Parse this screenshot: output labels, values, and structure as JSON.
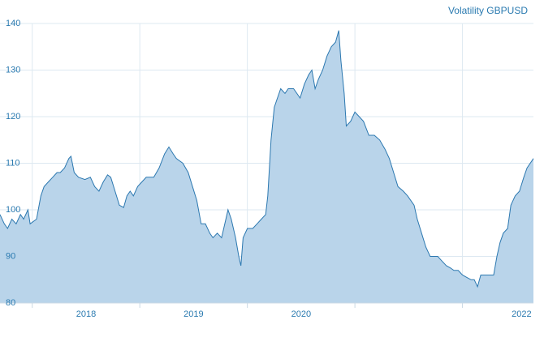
{
  "chart_data": {
    "type": "area",
    "title": "Volatility GBPUSD",
    "series": [
      {
        "name": "GBPUSD",
        "color": "#2c78b0",
        "fill": "#b9d4ea",
        "x": [
          2017.7,
          2017.74,
          2017.77,
          2017.81,
          2017.85,
          2017.89,
          2017.92,
          2017.96,
          2017.98,
          2018.04,
          2018.08,
          2018.11,
          2018.15,
          2018.19,
          2018.23,
          2018.26,
          2018.3,
          2018.34,
          2018.36,
          2018.39,
          2018.43,
          2018.49,
          2018.54,
          2018.58,
          2018.62,
          2018.66,
          2018.7,
          2018.73,
          2018.77,
          2018.81,
          2018.85,
          2018.88,
          2018.91,
          2018.94,
          2018.98,
          2019.02,
          2019.06,
          2019.13,
          2019.18,
          2019.23,
          2019.27,
          2019.31,
          2019.34,
          2019.4,
          2019.45,
          2019.49,
          2019.53,
          2019.57,
          2019.61,
          2019.65,
          2019.68,
          2019.72,
          2019.76,
          2019.8,
          2019.82,
          2019.85,
          2019.89,
          2019.92,
          2019.94,
          2019.96,
          2020.0,
          2020.05,
          2020.09,
          2020.13,
          2020.17,
          2020.19,
          2020.22,
          2020.25,
          2020.28,
          2020.31,
          2020.35,
          2020.38,
          2020.43,
          2020.49,
          2020.53,
          2020.57,
          2020.6,
          2020.63,
          2020.66,
          2020.7,
          2020.74,
          2020.78,
          2020.82,
          2020.85,
          2020.87,
          2020.9,
          2020.92,
          2020.96,
          2021.0,
          2021.04,
          2021.08,
          2021.13,
          2021.18,
          2021.23,
          2021.28,
          2021.32,
          2021.36,
          2021.4,
          2021.45,
          2021.49,
          2021.55,
          2021.58,
          2021.62,
          2021.66,
          2021.7,
          2021.77,
          2021.81,
          2021.85,
          2021.89,
          2021.92,
          2021.96,
          2022.0,
          2022.04,
          2022.08,
          2022.11,
          2022.14,
          2022.17,
          2022.23,
          2022.29,
          2022.32,
          2022.35,
          2022.38,
          2022.42,
          2022.45,
          2022.49,
          2022.53,
          2022.57,
          2022.6,
          2022.66
        ],
        "values": [
          99,
          97,
          96,
          98,
          97,
          99,
          98,
          100,
          97,
          98,
          103,
          105,
          106,
          107,
          108,
          108,
          109,
          111,
          111.5,
          108,
          107,
          106.5,
          107,
          105,
          104,
          106,
          107.5,
          107,
          104,
          101,
          100.5,
          103,
          104,
          103,
          105,
          106,
          107,
          107,
          109,
          112,
          113.5,
          112,
          111,
          110,
          108,
          105,
          102,
          97,
          97,
          95,
          94,
          95,
          94,
          98,
          100,
          98,
          94,
          90,
          88,
          94,
          96,
          96,
          97,
          98,
          99,
          103,
          115,
          122,
          124,
          126,
          125,
          126,
          126,
          124,
          127,
          129,
          130,
          126,
          128,
          130,
          133,
          135,
          136,
          138.5,
          132,
          125,
          118,
          119,
          121,
          120,
          119,
          116,
          116,
          115,
          113,
          111,
          108,
          105,
          104,
          103,
          101,
          98,
          95,
          92,
          90,
          90,
          89,
          88,
          87.5,
          87,
          87,
          86,
          85.5,
          85,
          85,
          83.5,
          86,
          86,
          86,
          90,
          93,
          95,
          96,
          101,
          103,
          104,
          107,
          109,
          111
        ]
      }
    ],
    "xlim": [
      2017.7,
      2022.66
    ],
    "xgrid": [
      2018,
      2019,
      2020,
      2021,
      2022
    ],
    "xticks": [
      {
        "value": 2018.5,
        "label": "2018"
      },
      {
        "value": 2019.5,
        "label": "2019"
      },
      {
        "value": 2020.5,
        "label": "2020"
      },
      {
        "value": 2022.55,
        "label": "2022"
      }
    ],
    "ylim": [
      80,
      140
    ],
    "yticks": [
      80,
      90,
      100,
      110,
      120,
      130,
      140
    ],
    "grid": true
  }
}
